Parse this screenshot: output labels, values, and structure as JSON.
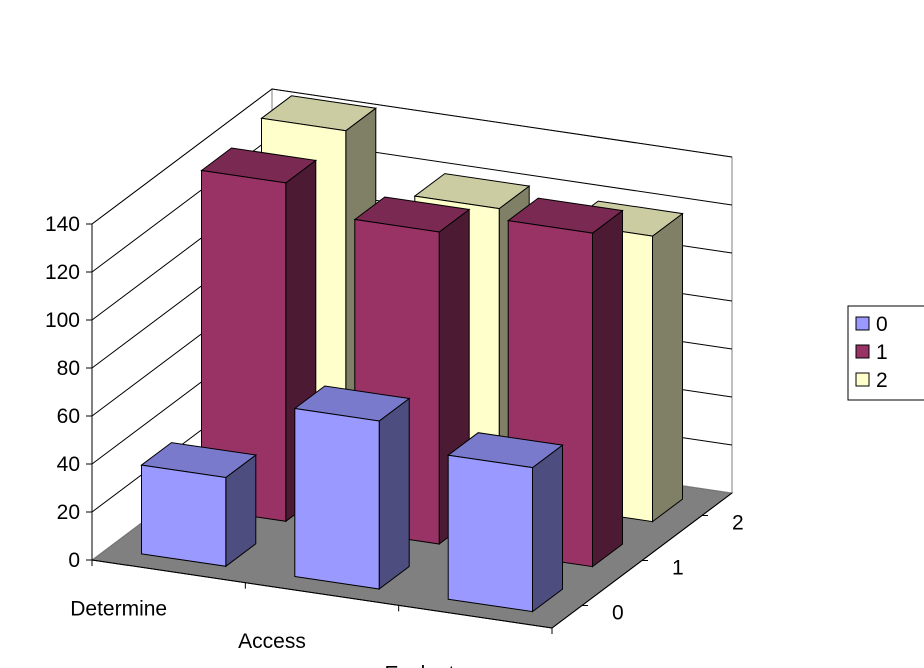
{
  "chart_data": {
    "type": "bar",
    "subtype": "3d-column",
    "title": "",
    "xlabel": "",
    "ylabel": "",
    "categories": [
      "Determine",
      "Access",
      "Evaluate"
    ],
    "depth_labels": [
      "0",
      "1",
      "2"
    ],
    "series": [
      {
        "name": "0",
        "values": [
          37,
          70,
          60
        ],
        "color": "#9999ff"
      },
      {
        "name": "1",
        "values": [
          141,
          130,
          139
        ],
        "color": "#993366"
      },
      {
        "name": "2",
        "values": [
          144,
          121,
          119
        ],
        "color": "#ffffcc"
      }
    ],
    "y_ticks": [
      "0",
      "20",
      "40",
      "60",
      "80",
      "100",
      "120",
      "140"
    ],
    "ylim": [
      0,
      140
    ],
    "grid": true,
    "legend": {
      "position": "right",
      "entries": [
        "0",
        "1",
        "2"
      ]
    },
    "colors": {
      "wall": "#ffffff",
      "floor": "#808080",
      "gridline": "#000000"
    }
  }
}
